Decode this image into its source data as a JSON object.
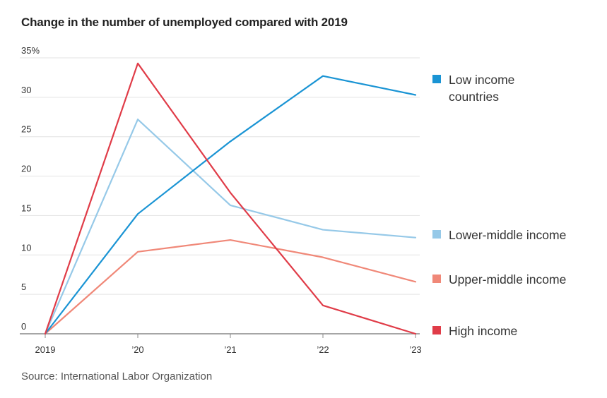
{
  "chart_data": {
    "type": "line",
    "title": "Change in the number of unemployed compared with 2019",
    "source": "Source: International Labor Organization",
    "x": [
      "2019",
      "’20",
      "’21",
      "’22",
      "’23"
    ],
    "ylim": [
      0,
      35
    ],
    "yticks": [
      {
        "value": 0,
        "label": "0"
      },
      {
        "value": 5,
        "label": "5"
      },
      {
        "value": 10,
        "label": "10"
      },
      {
        "value": 15,
        "label": "15"
      },
      {
        "value": 20,
        "label": "20"
      },
      {
        "value": 25,
        "label": "25"
      },
      {
        "value": 30,
        "label": "30"
      },
      {
        "value": 35,
        "label": "35%"
      }
    ],
    "grid": true,
    "series": [
      {
        "key": "low",
        "name": "Low income countries",
        "legend_lines": [
          "Low income",
          "countries"
        ],
        "color": "#1a94d4",
        "values": [
          0,
          15.2,
          24.4,
          32.7,
          30.3
        ]
      },
      {
        "key": "lower_middle",
        "name": "Lower-middle income",
        "legend_lines": [
          "Lower-middle income"
        ],
        "color": "#96c9e8",
        "values": [
          0,
          27.2,
          16.3,
          13.2,
          12.2
        ]
      },
      {
        "key": "upper_middle",
        "name": "Upper-middle income",
        "legend_lines": [
          "Upper-middle income"
        ],
        "color": "#f08878",
        "values": [
          0,
          10.4,
          11.9,
          9.7,
          6.6
        ]
      },
      {
        "key": "high",
        "name": "High income",
        "legend_lines": [
          "High income"
        ],
        "color": "#e03c48",
        "values": [
          0,
          34.3,
          17.9,
          3.6,
          0
        ]
      }
    ]
  }
}
